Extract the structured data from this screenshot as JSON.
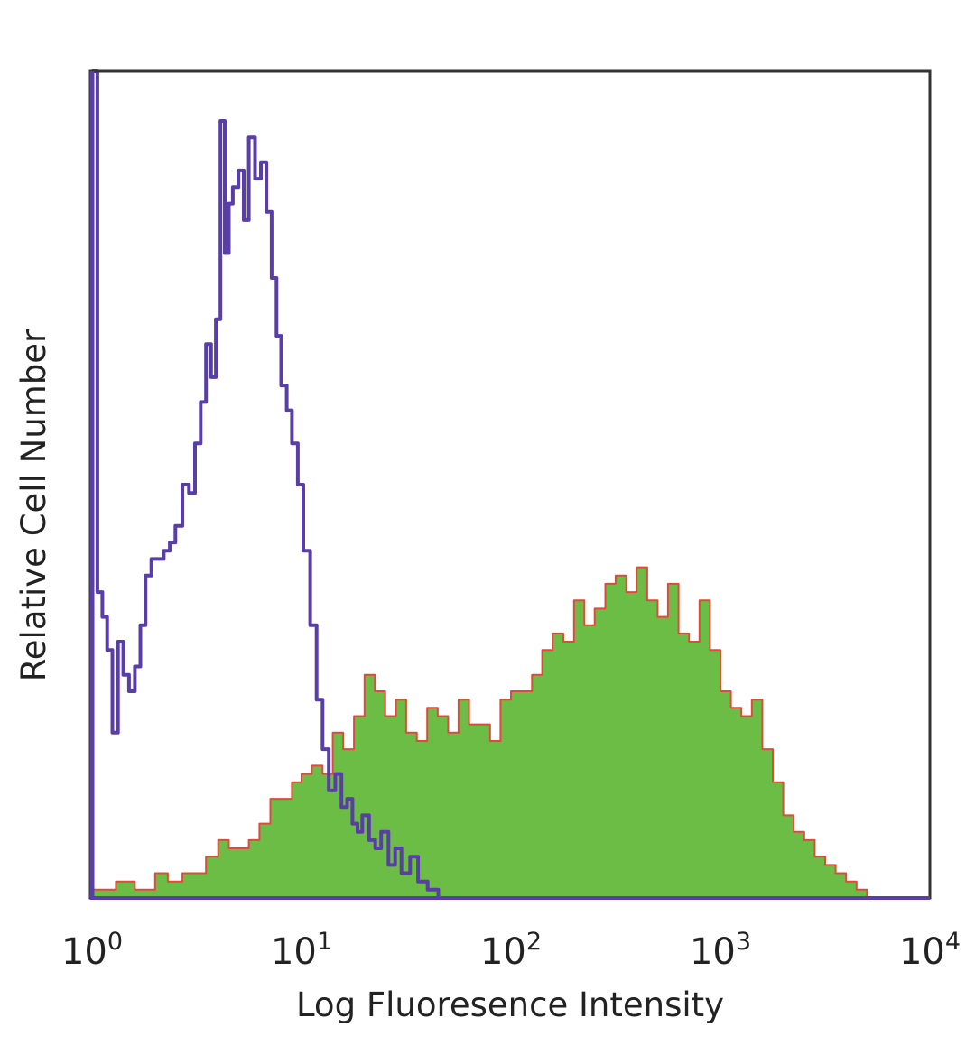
{
  "chart_data": {
    "type": "area",
    "xlabel": "Log Fluoresence Intensity",
    "ylabel": "Relative Cell Number",
    "x_scale": "log",
    "xlim": [
      1,
      10000
    ],
    "ylim": [
      0,
      100
    ],
    "x_ticks": [
      {
        "value": 1,
        "base": "10",
        "exp": "0"
      },
      {
        "value": 10,
        "base": "10",
        "exp": "1"
      },
      {
        "value": 100,
        "base": "10",
        "exp": "2"
      },
      {
        "value": 1000,
        "base": "10",
        "exp": "3"
      },
      {
        "value": 10000,
        "base": "10",
        "exp": "4"
      }
    ],
    "grid": false,
    "legend": "none",
    "colors": {
      "control_line": "#5a3ea8",
      "stained_fill": "#6cbd45",
      "stained_edge": "#e04a3a",
      "axes": "#333333"
    },
    "series": [
      {
        "style": "outline",
        "x": [
          1.0,
          1.06,
          1.12,
          1.18,
          1.25,
          1.33,
          1.41,
          1.5,
          1.6,
          1.7,
          1.8,
          1.92,
          2.05,
          2.2,
          2.35,
          2.5,
          2.7,
          2.9,
          3.1,
          3.3,
          3.5,
          3.7,
          3.9,
          4.1,
          4.3,
          4.5,
          4.7,
          5.0,
          5.3,
          5.6,
          6.0,
          6.4,
          6.8,
          7.2,
          7.6,
          8.0,
          8.5,
          9.0,
          9.6,
          10.2,
          11.0,
          11.8,
          12.6,
          13.5,
          14.5,
          15.5,
          16.5,
          17.5,
          18.5,
          19.5,
          21.0,
          22.5,
          24.0,
          26.0,
          28.0,
          30.0,
          33.0,
          36.0,
          40.0,
          45.0
        ],
        "y": [
          100,
          37,
          34,
          30,
          20,
          31,
          27,
          25,
          28,
          33,
          39,
          41,
          41,
          42,
          43,
          45,
          50,
          49,
          55,
          60,
          67,
          63,
          70,
          94,
          78,
          84,
          86,
          88,
          82,
          92,
          87,
          89,
          83,
          75,
          68,
          62,
          59,
          55,
          50,
          42,
          33,
          24,
          18,
          13,
          15,
          11,
          12,
          9,
          8,
          10,
          7,
          6,
          8,
          4,
          6,
          3,
          5,
          2,
          1,
          0
        ]
      },
      {
        "style": "filled",
        "x": [
          1.0,
          1.3,
          1.6,
          2.0,
          2.3,
          2.7,
          3.1,
          3.5,
          4.0,
          4.5,
          5.0,
          5.6,
          6.3,
          7.1,
          8.0,
          9.0,
          10.0,
          11.2,
          12.6,
          14.1,
          15.8,
          17.8,
          20.0,
          22.4,
          25.1,
          28.2,
          31.6,
          35.5,
          39.8,
          44.7,
          50.1,
          56.2,
          63.1,
          70.8,
          79.4,
          89.1,
          100,
          112,
          126,
          141,
          158,
          178,
          200,
          224,
          251,
          282,
          316,
          355,
          398,
          447,
          501,
          562,
          631,
          708,
          794,
          891,
          1000,
          1122,
          1259,
          1413,
          1585,
          1778,
          1995,
          2239,
          2512,
          2818,
          3162,
          3548,
          3981,
          4467,
          5012
        ],
        "y": [
          1,
          2,
          1,
          3,
          2,
          3,
          3,
          5,
          7,
          6,
          6,
          7,
          9,
          12,
          12,
          14,
          15,
          16,
          15,
          20,
          18,
          22,
          27,
          25,
          22,
          24,
          20,
          19,
          23,
          22,
          20,
          24,
          21,
          21,
          19,
          24,
          25,
          25,
          27,
          30,
          32,
          31,
          36,
          33,
          35,
          38,
          39,
          37,
          40,
          36,
          34,
          38,
          32,
          31,
          36,
          30,
          25,
          23,
          22,
          24,
          18,
          14,
          10,
          8,
          7,
          5,
          4,
          3,
          2,
          1,
          0
        ]
      }
    ]
  }
}
